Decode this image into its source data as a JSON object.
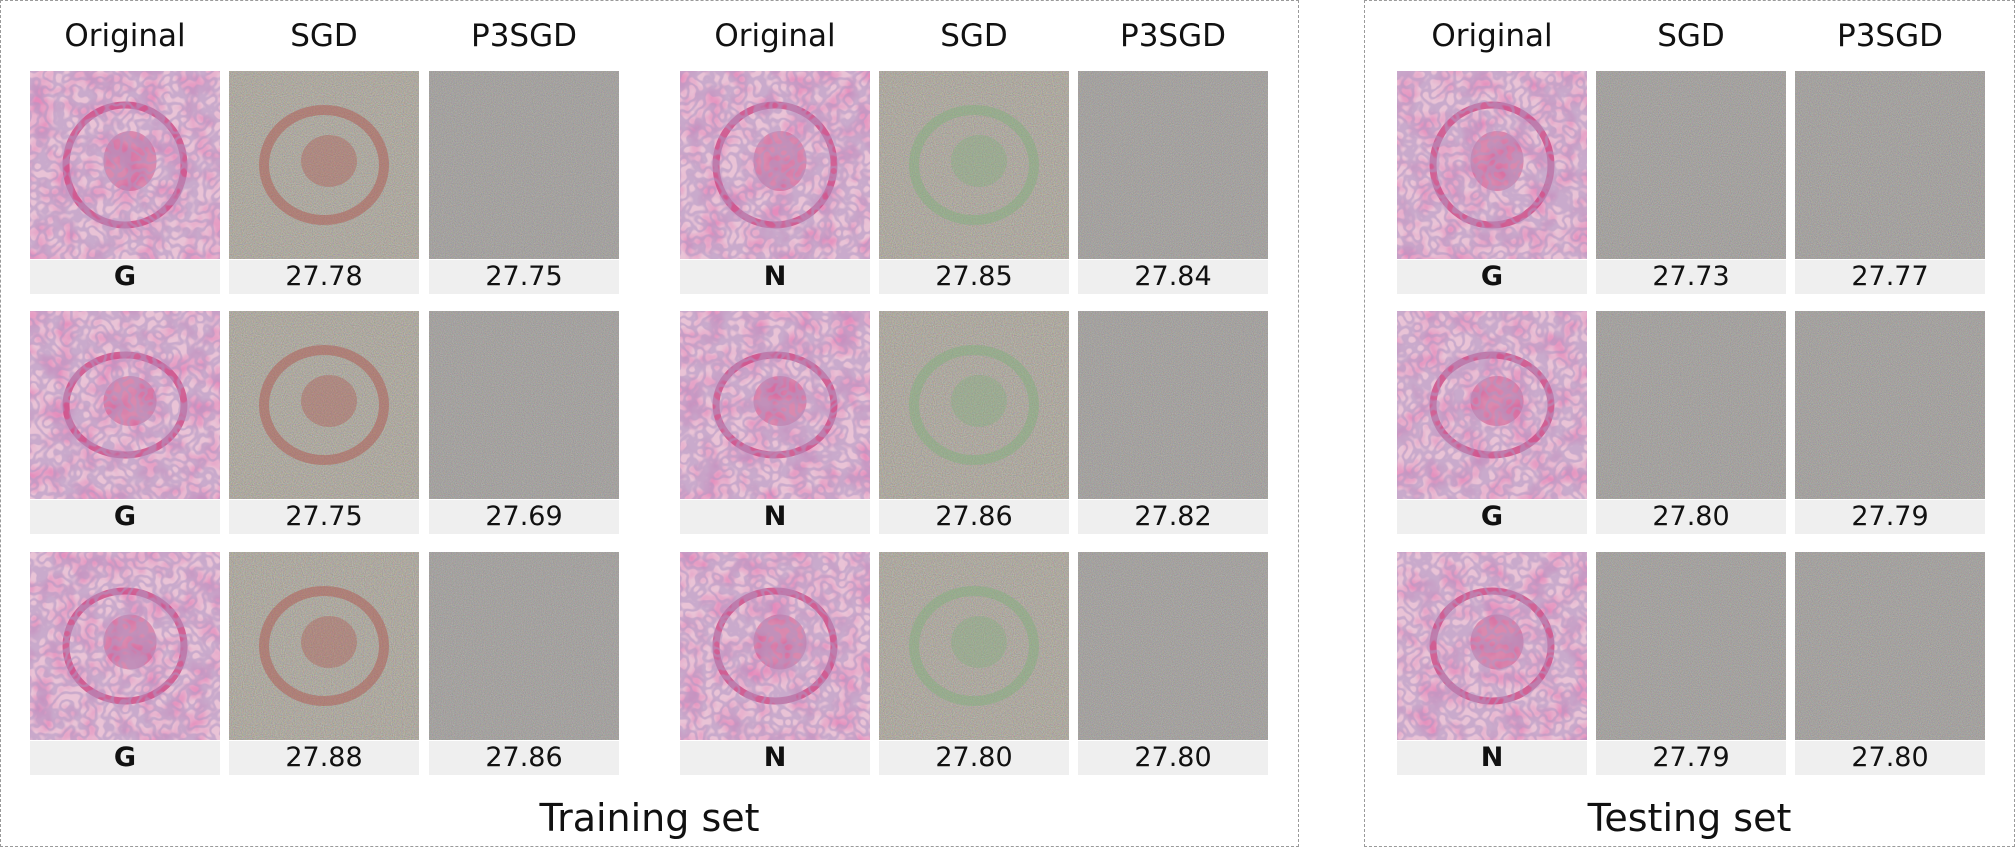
{
  "column_headers": [
    "Original",
    "SGD",
    "P3SGD"
  ],
  "groups": [
    {
      "rows": [
        {
          "class": "G",
          "sgd": "27.78",
          "p3sgd": "27.75"
        },
        {
          "class": "G",
          "sgd": "27.75",
          "p3sgd": "27.69"
        },
        {
          "class": "G",
          "sgd": "27.88",
          "p3sgd": "27.86"
        }
      ]
    },
    {
      "rows": [
        {
          "class": "N",
          "sgd": "27.85",
          "p3sgd": "27.84"
        },
        {
          "class": "N",
          "sgd": "27.86",
          "p3sgd": "27.82"
        },
        {
          "class": "N",
          "sgd": "27.80",
          "p3sgd": "27.80"
        }
      ]
    },
    {
      "rows": [
        {
          "class": "G",
          "sgd": "27.73",
          "p3sgd": "27.77"
        },
        {
          "class": "G",
          "sgd": "27.80",
          "p3sgd": "27.79"
        },
        {
          "class": "N",
          "sgd": "27.79",
          "p3sgd": "27.80"
        }
      ]
    }
  ],
  "captions": {
    "training": "Training set",
    "testing": "Testing set"
  },
  "colors": {
    "tissue_bg": "#e9c3d6",
    "tissue_stain": "#c8427f",
    "tissue_nuclei": "#6e4f8c",
    "sgd_noise_base": "#7a7060",
    "sgd_red_trace": "#b0504a",
    "sgd_green_trace": "#7fb07a",
    "p3sgd_noise_base": "#6f6a66",
    "label_bg": "#efefef"
  }
}
